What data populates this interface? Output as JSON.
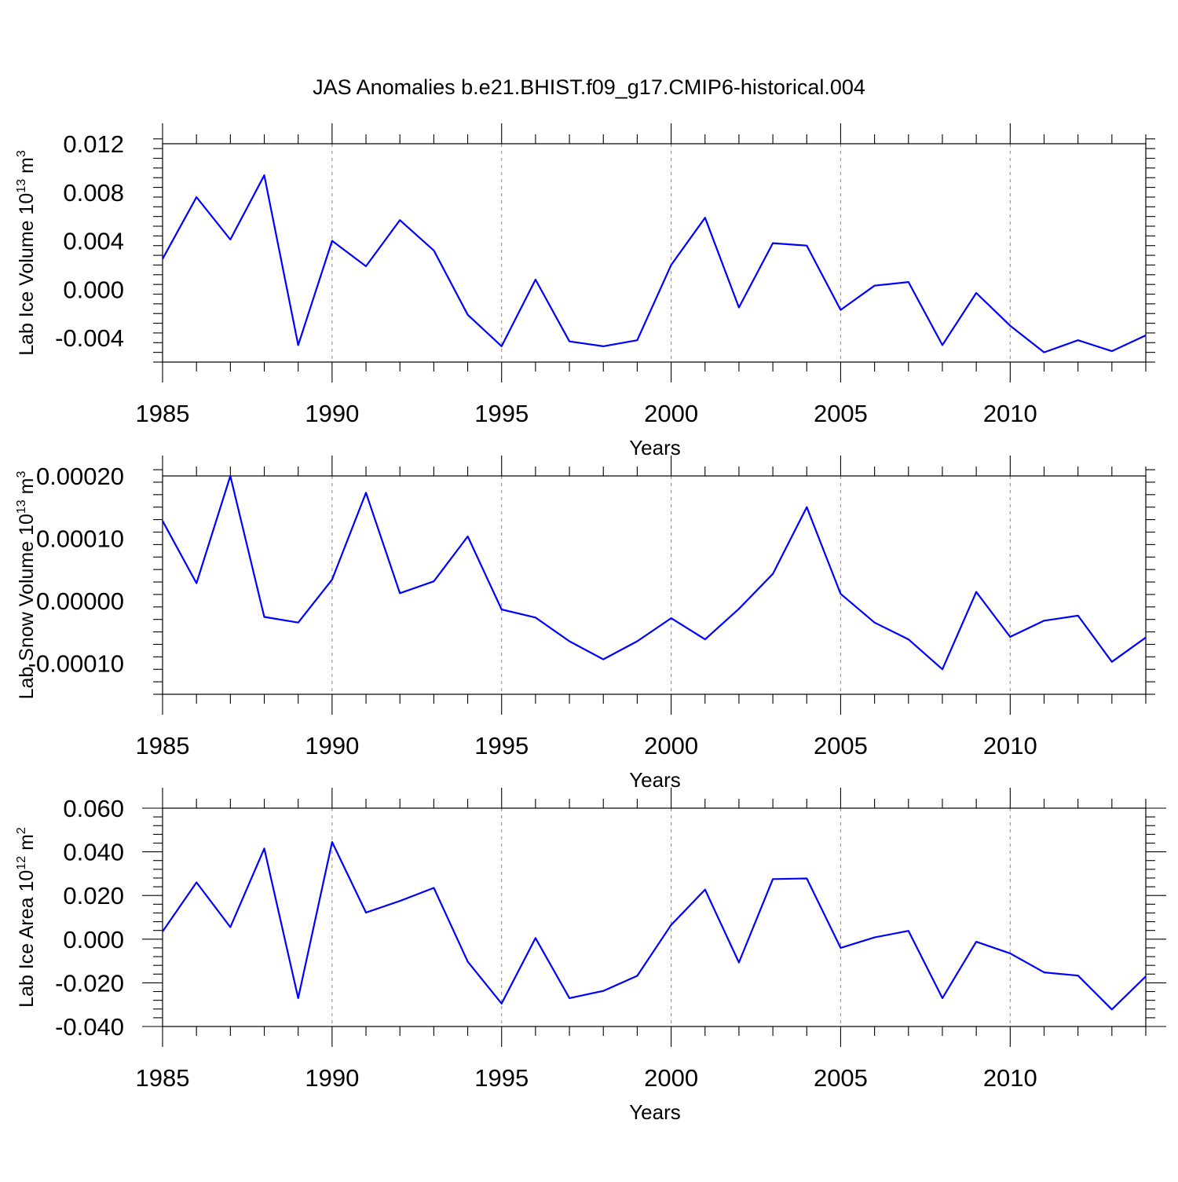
{
  "chart_data": {
    "type": "line",
    "title": "JAS Anomalies b.e21.BHIST.f09_g17.CMIP6-historical.004",
    "line_color": "#0000ff",
    "x": [
      1985,
      1986,
      1987,
      1988,
      1989,
      1990,
      1991,
      1992,
      1993,
      1994,
      1995,
      1996,
      1997,
      1998,
      1999,
      2000,
      2001,
      2002,
      2003,
      2004,
      2005,
      2006,
      2007,
      2008,
      2009,
      2010,
      2011,
      2012,
      2013,
      2014
    ],
    "xlim": [
      1985,
      2014
    ],
    "xticks": [
      1985,
      1990,
      1995,
      2000,
      2005,
      2010
    ],
    "xtick_labels": [
      "1985",
      "1990",
      "1995",
      "2000",
      "2005",
      "2010"
    ],
    "xlabel": "Years",
    "vertical_gridlines": [
      1990,
      1995,
      2000,
      2005,
      2010
    ],
    "panels": [
      {
        "ylabel": "Lab Ice Volume 10",
        "ylabel_exponent": "13",
        "ylabel_unit": " m",
        "ylabel_unit_exponent": "3",
        "ylim": [
          -0.006,
          0.012
        ],
        "yticks": [
          -0.004,
          0.0,
          0.004,
          0.008,
          0.012
        ],
        "ytick_labels": [
          "-0.004",
          "0.000",
          "0.004",
          "0.008",
          "0.012"
        ],
        "values": [
          0.0025,
          0.0076,
          0.0041,
          0.0094,
          -0.0046,
          0.004,
          0.0019,
          0.0057,
          0.0032,
          -0.0021,
          -0.0047,
          0.0008,
          -0.0043,
          -0.0047,
          -0.0042,
          0.002,
          0.0059,
          -0.0015,
          0.0038,
          0.0036,
          -0.0017,
          0.0003,
          0.0006,
          -0.0046,
          -0.0003,
          -0.003,
          -0.0052,
          -0.0042,
          -0.0051,
          -0.0038
        ]
      },
      {
        "ylabel": "Lab Snow Volume 10",
        "ylabel_exponent": "13",
        "ylabel_unit": " m",
        "ylabel_unit_exponent": "3",
        "ylim": [
          -0.00015,
          0.0002
        ],
        "yticks": [
          -0.0001,
          0.0,
          0.0001,
          0.0002
        ],
        "ytick_labels": [
          "-0.00010",
          "0.00000",
          "0.00010",
          "0.00020"
        ],
        "values": [
          0.000128,
          2.8e-05,
          0.0002,
          -2.6e-05,
          -3.5e-05,
          3.4e-05,
          0.000173,
          1.2e-05,
          3.1e-05,
          0.000103,
          -1.4e-05,
          -2.7e-05,
          -6.5e-05,
          -9.4e-05,
          -6.5e-05,
          -2.8e-05,
          -6.2e-05,
          -1.3e-05,
          4.3e-05,
          0.00015,
          1.1e-05,
          -3.5e-05,
          -6.2e-05,
          -0.00011,
          1.4e-05,
          -5.8e-05,
          -3.2e-05,
          -2.4e-05,
          -9.8e-05,
          -5.9e-05
        ]
      },
      {
        "ylabel": "Lab Ice Area 10",
        "ylabel_exponent": "12",
        "ylabel_unit": " m",
        "ylabel_unit_exponent": "2",
        "ylim": [
          -0.04,
          0.06
        ],
        "yticks": [
          -0.04,
          -0.02,
          0.0,
          0.02,
          0.04,
          0.06
        ],
        "ytick_labels": [
          "-0.040",
          "-0.020",
          "0.000",
          "0.020",
          "0.040",
          "0.060"
        ],
        "values": [
          0.0035,
          0.026,
          0.0055,
          0.0415,
          -0.027,
          0.0445,
          0.0122,
          0.0175,
          0.0235,
          -0.0103,
          -0.0295,
          0.0005,
          -0.027,
          -0.0237,
          -0.0168,
          0.0065,
          0.0227,
          -0.0107,
          0.0275,
          0.0278,
          -0.004,
          0.0008,
          0.0038,
          -0.027,
          -0.0012,
          -0.0065,
          -0.0152,
          -0.0167,
          -0.0322,
          -0.017
        ]
      }
    ]
  }
}
